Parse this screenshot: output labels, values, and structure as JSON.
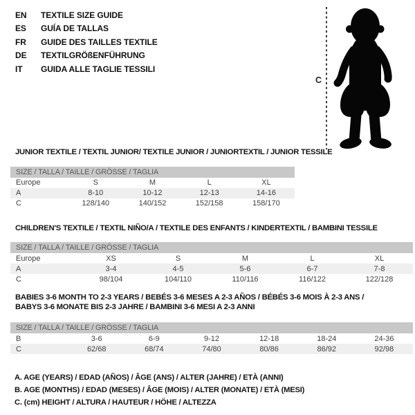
{
  "header": {
    "languages": [
      {
        "code": "EN",
        "title": "TEXTILE SIZE GUIDE"
      },
      {
        "code": "ES",
        "title": "GUÍA DE TALLAS"
      },
      {
        "code": "FR",
        "title": "GUIDE DES TAILLES TEXTILE"
      },
      {
        "code": "DE",
        "title": "TEXTILGRÖßENFÜHRUNG"
      },
      {
        "code": "IT",
        "title": "GUIDA ALLE TAGLIE TESSILI"
      }
    ]
  },
  "figure": {
    "label": "C",
    "depicts": "baby-toddler-silhouette-with-height-line"
  },
  "sections": [
    {
      "title_lines": [
        "JUNIOR TEXTILE / TEXTIL JUNIOR/ TEXTILE JUNIOR / JUNIORTEXTIL / JUNIOR TESSILE"
      ],
      "table": {
        "header": "SIZE / TALLA / TAILLE / GRÖSSE / TAGLIA",
        "rows": [
          {
            "label": "Europe",
            "values": [
              "S",
              "M",
              "L",
              "XL"
            ]
          },
          {
            "label": "A",
            "values": [
              "8-10",
              "10-12",
              "12-13",
              "14-16"
            ]
          },
          {
            "label": "C",
            "values": [
              "128/140",
              "140/152",
              "152/158",
              "158/170"
            ]
          }
        ]
      }
    },
    {
      "title_lines": [
        "CHILDREN'S TEXTILE / TEXTIL NIÑO/A / TEXTILE DES ENFANTS / KINDERTEXTIL / BAMBINI TESSILE"
      ],
      "table": {
        "header": "SIZE / TALLA / TAILLE / GRÖSSE / TAGLIA",
        "rows": [
          {
            "label": "Europe",
            "values": [
              "XS",
              "S",
              "M",
              "L",
              "XL"
            ]
          },
          {
            "label": "A",
            "values": [
              "3-4",
              "4-5",
              "5-6",
              "6-7",
              "7-8"
            ]
          },
          {
            "label": "C",
            "values": [
              "98/104",
              "104/110",
              "110/116",
              "116/122",
              "122/128"
            ]
          }
        ]
      }
    },
    {
      "title_lines": [
        "BABIES 3-6 MONTH TO 2-3 YEARS / BEBÉS 3-6 MESES A 2-3 AÑOS / BÉBÉS 3-6 MOIS À 2-3 ANS /",
        "BABYS 3-6 MONATE BIS 2-3 JAHRE / BAMBINI 3-6 MESI A 2-3 ANNI"
      ],
      "table": {
        "header": "SIZE / TALLA / TAILLE / GRÖSSE / TAGLIA",
        "rows": [
          {
            "label": "B",
            "values": [
              "3-6",
              "6-9",
              "9-12",
              "12-18",
              "18-24",
              "24-36"
            ]
          },
          {
            "label": "C",
            "values": [
              "62/68",
              "68/74",
              "74/80",
              "80/86",
              "86/92",
              "92/98"
            ]
          }
        ]
      }
    }
  ],
  "footnotes": [
    "A. AGE (YEARS) / EDAD (AÑOS) / ÂGE (ANS) / ALTER (JAHRE) / ETÀ (ANNI)",
    "B. AGE (MONTHS) / EDAD (MESES) / ÂGE (MOIS) / ALTER (MONATE) / ETÀ (MESI)",
    "C. (cm) HEIGHT / ALTURA / HAUTEUR / HÖHE / ALTEZZA"
  ],
  "colors": {
    "table_header_bg": "#c8c8c8",
    "table_header_text": "#585858",
    "shaded_row_bg": "#efefef",
    "table_text": "#3d3d3d",
    "title_text": "#141414",
    "silhouette": "#060606"
  }
}
